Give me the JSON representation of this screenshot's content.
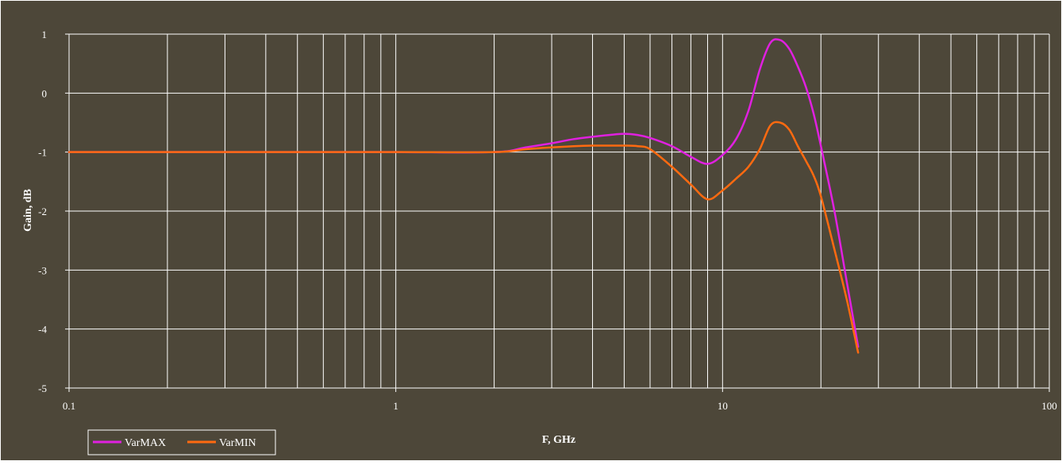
{
  "chart_data": {
    "type": "line",
    "title": "",
    "xlabel": "F, GHz",
    "ylabel": "Gain, dB",
    "x_scale": "log",
    "xlim": [
      0.1,
      100
    ],
    "ylim": [
      -5,
      1
    ],
    "x_ticks": [
      "0.1",
      "1",
      "10",
      "100"
    ],
    "y_ticks": [
      "1",
      "0",
      "-1",
      "-2",
      "-3",
      "-4",
      "-5"
    ],
    "grid": true,
    "legend_position": "bottom-left",
    "colors": {
      "background": "#4d4739",
      "plot_background": "#4d4739",
      "grid": "#ffffff",
      "text": "#ffffff"
    },
    "series": [
      {
        "name": "VarMAX",
        "color": "#e020e0",
        "x": [
          0.1,
          0.5,
          1,
          2,
          2.5,
          3,
          3.5,
          4,
          4.5,
          5,
          5.5,
          6,
          7,
          8,
          9,
          10,
          11,
          12,
          13,
          14,
          15,
          16,
          17,
          18,
          19,
          20,
          22,
          24,
          26
        ],
        "y": [
          -1,
          -1,
          -1,
          -1,
          -0.92,
          -0.85,
          -0.78,
          -0.74,
          -0.71,
          -0.69,
          -0.71,
          -0.76,
          -0.9,
          -1.08,
          -1.2,
          -1.05,
          -0.78,
          -0.3,
          0.4,
          0.85,
          0.9,
          0.75,
          0.45,
          0.1,
          -0.35,
          -0.9,
          -2.0,
          -3.2,
          -4.3
        ]
      },
      {
        "name": "VarMIN",
        "color": "#ff6a10",
        "x": [
          0.1,
          0.5,
          1,
          2,
          2.5,
          3,
          3.5,
          4,
          4.5,
          5,
          5.5,
          6,
          7,
          8,
          9,
          10,
          11,
          12,
          13,
          14,
          15,
          16,
          17,
          18,
          19,
          20,
          22,
          24,
          26
        ],
        "y": [
          -1,
          -1,
          -1,
          -1,
          -0.95,
          -0.92,
          -0.9,
          -0.89,
          -0.89,
          -0.89,
          -0.9,
          -0.95,
          -1.25,
          -1.55,
          -1.8,
          -1.65,
          -1.45,
          -1.25,
          -0.95,
          -0.55,
          -0.5,
          -0.62,
          -0.9,
          -1.15,
          -1.4,
          -1.75,
          -2.65,
          -3.5,
          -4.4
        ]
      }
    ]
  }
}
